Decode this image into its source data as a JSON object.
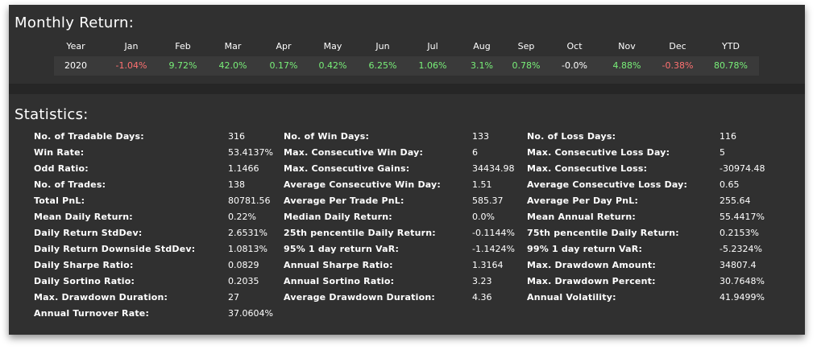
{
  "monthly": {
    "title": "Monthly Return:",
    "headers": [
      "Year",
      "Jan",
      "Feb",
      "Mar",
      "Apr",
      "May",
      "Jun",
      "Jul",
      "Aug",
      "Sep",
      "Oct",
      "Nov",
      "Dec",
      "YTD"
    ],
    "row": [
      "2020",
      "-1.04%",
      "9.72%",
      "42.0%",
      "0.17%",
      "0.42%",
      "6.25%",
      "1.06%",
      "3.1%",
      "0.78%",
      "-0.0%",
      "4.88%",
      "-0.38%",
      "80.78%"
    ],
    "colors": {
      "negative": "#ff7171",
      "positive": "#79f079",
      "neutral": "#ffffff"
    }
  },
  "statistics": {
    "title": "Statistics:",
    "rows": [
      [
        [
          "No. of Tradable Days:",
          "316"
        ],
        [
          "No. of Win Days:",
          "133"
        ],
        [
          "No. of Loss Days:",
          "116"
        ]
      ],
      [
        [
          "Win Rate:",
          "53.4137%"
        ],
        [
          "Max. Consecutive Win Day:",
          "6"
        ],
        [
          "Max. Consecutive Loss Day:",
          "5"
        ]
      ],
      [
        [
          "Odd Ratio:",
          "1.1466"
        ],
        [
          "Max. Consecutive Gains:",
          "34434.98"
        ],
        [
          "Max. Consecutive Loss:",
          "-30974.48"
        ]
      ],
      [
        [
          "No. of Trades:",
          "138"
        ],
        [
          "Average Consecutive Win Day:",
          "1.51"
        ],
        [
          "Average Consecutive Loss Day:",
          "0.65"
        ]
      ],
      [
        [
          "Total PnL:",
          "80781.56"
        ],
        [
          "Average Per Trade PnL:",
          "585.37"
        ],
        [
          "Average Per Day PnL:",
          "255.64"
        ]
      ],
      [
        [
          "Mean Daily Return:",
          "0.22%"
        ],
        [
          "Median Daily Return:",
          "0.0%"
        ],
        [
          "Mean Annual Return:",
          "55.4417%"
        ]
      ],
      [
        [
          "Daily Return StdDev:",
          "2.6531%"
        ],
        [
          "25th pencentile Daily Return:",
          "-0.1144%"
        ],
        [
          "75th pencentile Daily Return:",
          "0.2153%"
        ]
      ],
      [
        [
          "Daily Return Downside StdDev:",
          "1.0813%"
        ],
        [
          "95% 1 day return VaR:",
          "-1.1424%"
        ],
        [
          "99% 1 day return VaR:",
          "-5.2324%"
        ]
      ],
      [
        [
          "Daily Sharpe Ratio:",
          "0.0829"
        ],
        [
          "Annual Sharpe Ratio:",
          "1.3164"
        ],
        [
          "Max. Drawdown Amount:",
          "34807.4"
        ]
      ],
      [
        [
          "Daily Sortino Ratio:",
          "0.2035"
        ],
        [
          "Annual Sortino Ratio:",
          "3.23"
        ],
        [
          "Max. Drawdown Percent:",
          "30.7648%"
        ]
      ],
      [
        [
          "Max. Drawdown Duration:",
          "27"
        ],
        [
          "Average Drawdown Duration:",
          "4.36"
        ],
        [
          "Annual Volatility:",
          "41.9499%"
        ]
      ],
      [
        [
          "Annual Turnover Rate:",
          "37.0604%"
        ]
      ]
    ]
  }
}
